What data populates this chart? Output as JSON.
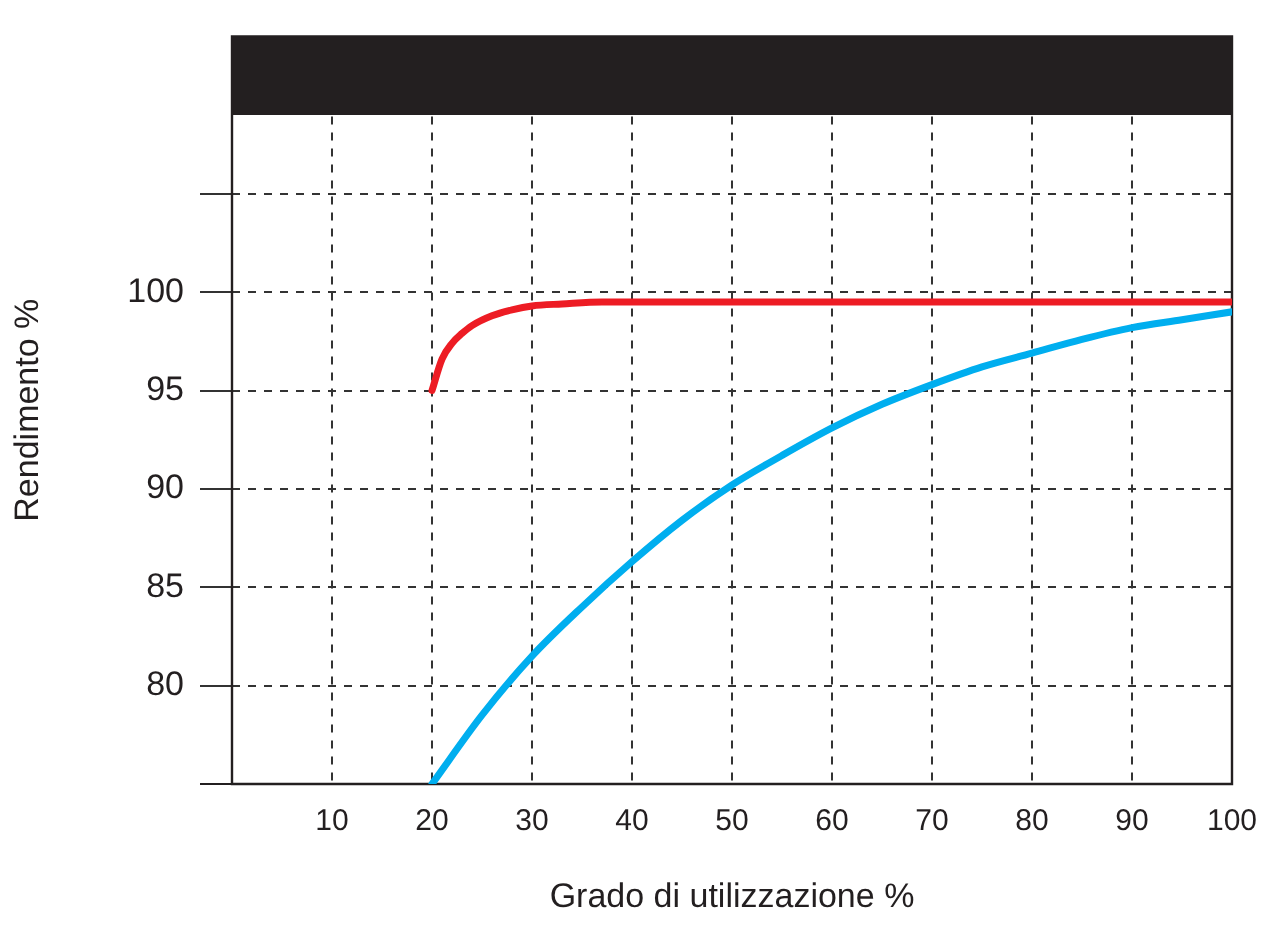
{
  "chart_data": {
    "type": "line",
    "xlabel": "Grado di utilizzazione %",
    "ylabel": "Rendimento %",
    "xlim": [
      0,
      100
    ],
    "xticks": [
      10,
      20,
      30,
      40,
      50,
      60,
      70,
      80,
      90,
      100
    ],
    "ylim": [
      75,
      113
    ],
    "yticks": [
      {
        "value": 75,
        "label": null
      },
      80,
      85,
      90,
      95,
      100,
      {
        "value": 105,
        "label": null
      }
    ],
    "grid": true,
    "legend": false,
    "marker": "none",
    "line_style": "solid",
    "bands": [
      {
        "axis": "y",
        "from": 109,
        "to": 113,
        "color": "#231f20"
      }
    ],
    "series": [
      {
        "color": "#ed1c24",
        "x": [
          20,
          21,
          22,
          23,
          24,
          26,
          28,
          30,
          33,
          37,
          45,
          60,
          80,
          100
        ],
        "values": [
          95,
          96.6,
          97.4,
          97.9,
          98.3,
          98.8,
          99.1,
          99.3,
          99.4,
          99.5,
          99.5,
          99.5,
          99.5,
          99.5
        ]
      },
      {
        "color": "#00aeef",
        "x": [
          20,
          25,
          30,
          35,
          40,
          45,
          50,
          55,
          60,
          65,
          70,
          75,
          80,
          85,
          90,
          95,
          100
        ],
        "values": [
          75,
          78.5,
          81.5,
          84,
          86.3,
          88.4,
          90.2,
          91.7,
          93.1,
          94.3,
          95.3,
          96.2,
          96.9,
          97.6,
          98.2,
          98.6,
          99.0
        ]
      }
    ]
  }
}
